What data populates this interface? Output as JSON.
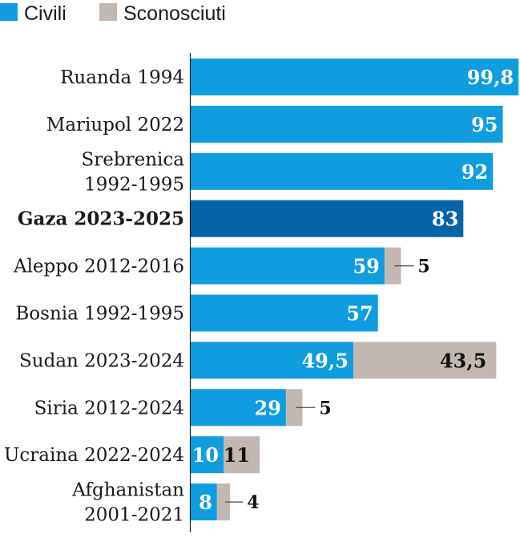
{
  "chart_data": {
    "type": "bar",
    "orientation": "horizontal",
    "stacked": true,
    "legend_position": "top-left",
    "colors": {
      "civili": "#0f9de0",
      "highlight": "#0563aa",
      "sconosciuti": "#c3b8b1",
      "axis": "#222222"
    },
    "series": [
      {
        "name": "Civili",
        "values": [
          99.8,
          95,
          92,
          83,
          59,
          57,
          49.5,
          29,
          10,
          8
        ]
      },
      {
        "name": "Sconosciuti",
        "values": [
          0,
          0,
          0,
          0,
          5,
          0,
          43.5,
          5,
          11,
          4
        ]
      }
    ],
    "categories": [
      {
        "lines": [
          "Ruanda 1994"
        ],
        "bold": false
      },
      {
        "lines": [
          "Mariupol 2022"
        ],
        "bold": false
      },
      {
        "lines": [
          "Srebrenica",
          "1992-1995"
        ],
        "bold": false
      },
      {
        "lines": [
          "Gaza 2023-2025"
        ],
        "bold": true,
        "highlight": true
      },
      {
        "lines": [
          "Aleppo 2012-2016"
        ],
        "bold": false
      },
      {
        "lines": [
          "Bosnia 1992-1995"
        ],
        "bold": false
      },
      {
        "lines": [
          "Sudan 2023-2024"
        ],
        "bold": false
      },
      {
        "lines": [
          "Siria 2012-2024"
        ],
        "bold": false
      },
      {
        "lines": [
          "Ucraina 2022-2024"
        ],
        "bold": false
      },
      {
        "lines": [
          "Afghanistan",
          "2001-2021"
        ],
        "bold": false
      }
    ],
    "value_labels": [
      {
        "civili": "99,8",
        "sconosciuti": "",
        "sconosciuti_outside": false
      },
      {
        "civili": "95",
        "sconosciuti": "",
        "sconosciuti_outside": false
      },
      {
        "civili": "92",
        "sconosciuti": "",
        "sconosciuti_outside": false
      },
      {
        "civili": "83",
        "sconosciuti": "",
        "sconosciuti_outside": false
      },
      {
        "civili": "59",
        "sconosciuti": "5",
        "sconosciuti_outside": true
      },
      {
        "civili": "57",
        "sconosciuti": "",
        "sconosciuti_outside": false
      },
      {
        "civili": "49,5",
        "sconosciuti": "43,5",
        "sconosciuti_outside": false
      },
      {
        "civili": "29",
        "sconosciuti": "5",
        "sconosciuti_outside": true
      },
      {
        "civili": "10",
        "sconosciuti": "11",
        "sconosciuti_outside": false
      },
      {
        "civili": "8",
        "sconosciuti": "4",
        "sconosciuti_outside": true
      }
    ],
    "xlim": [
      0,
      100
    ],
    "title": "",
    "xlabel": "",
    "ylabel": ""
  }
}
